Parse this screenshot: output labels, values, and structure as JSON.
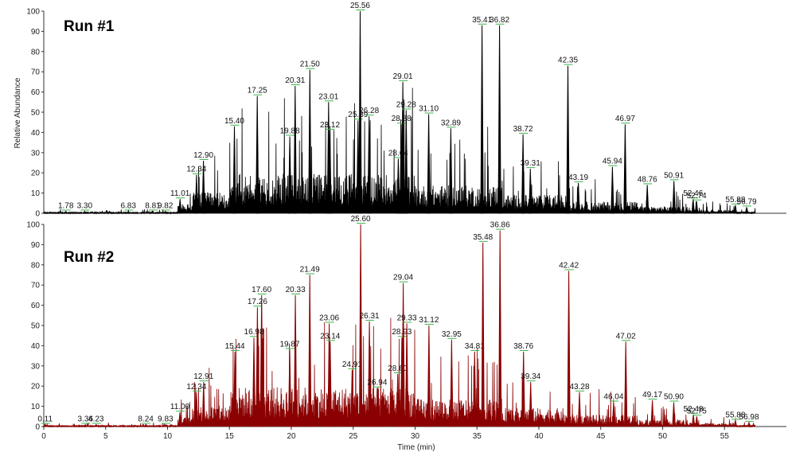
{
  "chart_data": [
    {
      "type": "line",
      "title": "Run #1",
      "ylabel": "Relative Abundance",
      "xlabel": "",
      "xlim": [
        0,
        60
      ],
      "ylim": [
        0,
        100
      ],
      "yticks": [
        0,
        10,
        20,
        30,
        40,
        50,
        60,
        70,
        80,
        90,
        100
      ],
      "xticks": [],
      "color": "#000000",
      "peaks": [
        {
          "x": 1.78,
          "y": 1
        },
        {
          "x": 3.3,
          "y": 1
        },
        {
          "x": 6.83,
          "y": 1
        },
        {
          "x": 8.81,
          "y": 1
        },
        {
          "x": 9.82,
          "y": 1
        },
        {
          "x": 11.01,
          "y": 7
        },
        {
          "x": 12.34,
          "y": 19
        },
        {
          "x": 12.9,
          "y": 26
        },
        {
          "x": 15.4,
          "y": 43
        },
        {
          "x": 17.25,
          "y": 58
        },
        {
          "x": 19.88,
          "y": 38
        },
        {
          "x": 20.31,
          "y": 63
        },
        {
          "x": 21.5,
          "y": 71
        },
        {
          "x": 23.01,
          "y": 55
        },
        {
          "x": 23.12,
          "y": 41
        },
        {
          "x": 25.39,
          "y": 46
        },
        {
          "x": 25.56,
          "y": 100
        },
        {
          "x": 26.28,
          "y": 48
        },
        {
          "x": 28.64,
          "y": 27
        },
        {
          "x": 28.88,
          "y": 44
        },
        {
          "x": 29.01,
          "y": 65
        },
        {
          "x": 29.28,
          "y": 51
        },
        {
          "x": 31.1,
          "y": 49
        },
        {
          "x": 32.89,
          "y": 42
        },
        {
          "x": 35.41,
          "y": 93
        },
        {
          "x": 36.82,
          "y": 93
        },
        {
          "x": 38.72,
          "y": 39
        },
        {
          "x": 39.31,
          "y": 22
        },
        {
          "x": 42.35,
          "y": 73
        },
        {
          "x": 43.19,
          "y": 15
        },
        {
          "x": 45.94,
          "y": 23
        },
        {
          "x": 46.97,
          "y": 44
        },
        {
          "x": 48.76,
          "y": 14
        },
        {
          "x": 50.91,
          "y": 16
        },
        {
          "x": 52.46,
          "y": 7
        },
        {
          "x": 52.74,
          "y": 6
        },
        {
          "x": 55.88,
          "y": 4
        },
        {
          "x": 56.79,
          "y": 3
        }
      ],
      "labels": [
        "1.78",
        "3.30",
        "6.83",
        "8.81",
        "9.82",
        "11.01",
        "12.34",
        "12.90",
        "15.40",
        "17.25",
        "19.88",
        "20.31",
        "21.50",
        "23.01",
        "23.12",
        "25.39",
        "25.56",
        "26.28",
        "28.64",
        "28.88",
        "29.01",
        "29.28",
        "31.10",
        "32.89",
        "35.41",
        "36.82",
        "38.72",
        "39.31",
        "42.35",
        "43.19",
        "45.94",
        "46.97",
        "48.76",
        "50.91",
        "52.46",
        "52.74",
        "55.88",
        "56.79"
      ]
    },
    {
      "type": "line",
      "title": "Run #2",
      "ylabel": "Relative Abundance",
      "xlabel": "Time (min)",
      "xlim": [
        0,
        60
      ],
      "ylim": [
        0,
        100
      ],
      "yticks": [
        0,
        10,
        20,
        30,
        40,
        50,
        60,
        70,
        80,
        90,
        100
      ],
      "xticks": [
        0,
        5,
        10,
        15,
        20,
        25,
        30,
        35,
        40,
        45,
        50,
        55
      ],
      "color": "#8b0000",
      "peaks": [
        {
          "x": 0.11,
          "y": 1
        },
        {
          "x": 3.36,
          "y": 1
        },
        {
          "x": 4.23,
          "y": 1
        },
        {
          "x": 8.24,
          "y": 1
        },
        {
          "x": 9.83,
          "y": 1
        },
        {
          "x": 11.0,
          "y": 7
        },
        {
          "x": 12.34,
          "y": 17
        },
        {
          "x": 12.91,
          "y": 22
        },
        {
          "x": 15.44,
          "y": 37
        },
        {
          "x": 16.98,
          "y": 44
        },
        {
          "x": 17.26,
          "y": 59
        },
        {
          "x": 17.6,
          "y": 65
        },
        {
          "x": 19.87,
          "y": 38
        },
        {
          "x": 20.33,
          "y": 65
        },
        {
          "x": 21.49,
          "y": 75
        },
        {
          "x": 23.06,
          "y": 51
        },
        {
          "x": 23.14,
          "y": 42
        },
        {
          "x": 24.91,
          "y": 28
        },
        {
          "x": 25.6,
          "y": 100
        },
        {
          "x": 26.31,
          "y": 52
        },
        {
          "x": 26.94,
          "y": 19
        },
        {
          "x": 28.6,
          "y": 26
        },
        {
          "x": 28.93,
          "y": 44
        },
        {
          "x": 29.04,
          "y": 71
        },
        {
          "x": 29.33,
          "y": 51
        },
        {
          "x": 31.12,
          "y": 50
        },
        {
          "x": 32.95,
          "y": 43
        },
        {
          "x": 34.81,
          "y": 37
        },
        {
          "x": 35.48,
          "y": 91
        },
        {
          "x": 36.86,
          "y": 97
        },
        {
          "x": 38.76,
          "y": 37
        },
        {
          "x": 39.34,
          "y": 22
        },
        {
          "x": 42.42,
          "y": 77
        },
        {
          "x": 43.28,
          "y": 17
        },
        {
          "x": 46.04,
          "y": 12
        },
        {
          "x": 47.02,
          "y": 42
        },
        {
          "x": 49.17,
          "y": 13
        },
        {
          "x": 50.9,
          "y": 12
        },
        {
          "x": 52.48,
          "y": 6
        },
        {
          "x": 52.75,
          "y": 5
        },
        {
          "x": 55.88,
          "y": 3
        },
        {
          "x": 56.98,
          "y": 2
        }
      ],
      "labels": [
        "0.11",
        "3.36",
        "4.23",
        "8.24",
        "9.83",
        "11.00",
        "12.34",
        "12.91",
        "15.44",
        "16.98",
        "17.26",
        "17.60",
        "19.87",
        "20.33",
        "21.49",
        "23.06",
        "23.14",
        "24.91",
        "25.60",
        "26.31",
        "26.94",
        "28.60",
        "28.93",
        "29.04",
        "29.33",
        "31.12",
        "32.95",
        "34.81",
        "35.48",
        "36.86",
        "38.76",
        "39.34",
        "42.42",
        "43.28",
        "46.04",
        "47.02",
        "49.17",
        "50.90",
        "52.48",
        "52.75",
        "55.88",
        "56.98"
      ]
    }
  ]
}
